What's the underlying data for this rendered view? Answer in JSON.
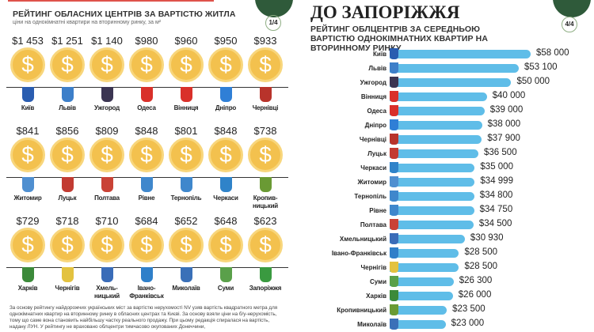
{
  "left": {
    "heading": "РЕЙТИНГ ОБЛАСНИХ ЦЕНТРІВ ЗА ВАРТІСТЮ ЖИТЛА",
    "subheading": "ціни на однокімнатні квартири на вторинному ринку, за м²",
    "page": "1/4",
    "coin_symbol": "$",
    "cities": [
      {
        "name": "Київ",
        "price": "$1 453",
        "flag": "#2a5db0"
      },
      {
        "name": "Львів",
        "price": "$1 251",
        "flag": "#3d7fc9"
      },
      {
        "name": "Ужгород",
        "price": "$1 140",
        "flag": "#3b3552"
      },
      {
        "name": "Одеса",
        "price": "$980",
        "flag": "#d9302a"
      },
      {
        "name": "Вінниця",
        "price": "$960",
        "flag": "#d9302a"
      },
      {
        "name": "Дніпро",
        "price": "$950",
        "flag": "#2f7fd6"
      },
      {
        "name": "Чернівці",
        "price": "$933",
        "flag": "#b8332b"
      },
      {
        "name": "Житомир",
        "price": "$841",
        "flag": "#4f8fd0"
      },
      {
        "name": "Луцьк",
        "price": "$856",
        "flag": "#c23b32"
      },
      {
        "name": "Полтава",
        "price": "$809",
        "flag": "#c94236"
      },
      {
        "name": "Рівне",
        "price": "$848",
        "flag": "#3f87cc"
      },
      {
        "name": "Тернопіль",
        "price": "$801",
        "flag": "#3f87cc"
      },
      {
        "name": "Черкаси",
        "price": "$848",
        "flag": "#2f83c9"
      },
      {
        "name": "Кропив-ницький",
        "price": "$738",
        "flag": "#6a9a34"
      },
      {
        "name": "Харків",
        "price": "$729",
        "flag": "#3c8a3a"
      },
      {
        "name": "Чернігів",
        "price": "$718",
        "flag": "#e3c23f"
      },
      {
        "name": "Хмель-ницький",
        "price": "$710",
        "flag": "#3a6cb8"
      },
      {
        "name": "Івано-Франківськ",
        "price": "$684",
        "flag": "#2f7fc9"
      },
      {
        "name": "Миколаїв",
        "price": "$652",
        "flag": "#3a70b8"
      },
      {
        "name": "Суми",
        "price": "$648",
        "flag": "#5aa04a"
      },
      {
        "name": "Запоріжжя",
        "price": "$623",
        "flag": "#3a9a40"
      }
    ],
    "footnote": "За основу рейтингу найдорожчих українських міст за вартістю нерухомості NV узяв вартість квадратного метра для однокімнатних квартир на вторинному ринку в обласних центрах та Києві. За основу взяли ціни на б/у-нерухомість, тому що саме вона становить найбільшу частку реального продажу. При цьому редакція спиралася на вартість, надану ЛУН. У рейтингу не враховано облцентри тимчасово окупованих Донеччини,"
  },
  "right": {
    "title": "ДО ЗАПОРІЖЖЯ",
    "page": "4/4",
    "chart_data": {
      "type": "bar",
      "orientation": "horizontal",
      "title": "РЕЙТИНГ ОБЛЦЕНТРІВ ЗА СЕРЕДНЬОЮ ВАРТІСТЮ ОДНОКІМНАТНИХ КВАРТИР НА ВТОРИННОМУ РИНКУ",
      "color": "#5fbde8",
      "categories": [
        "Київ",
        "Львів",
        "Ужгород",
        "Вінниця",
        "Одеса",
        "Дніпро",
        "Чернівці",
        "Луцьк",
        "Черкаси",
        "Житомир",
        "Тернопіль",
        "Рівне",
        "Полтава",
        "Хмельницький",
        "Івано-Франківськ",
        "Чернігів",
        "Суми",
        "Харків",
        "Кропивницький",
        "Миколаїв"
      ],
      "values": [
        58000,
        53100,
        50000,
        40000,
        39000,
        38000,
        37900,
        36500,
        35000,
        34999,
        34800,
        34750,
        34500,
        30930,
        28500,
        28500,
        26300,
        26000,
        23500,
        23000
      ],
      "labels": [
        "$58 000",
        "$53 100",
        "$50 000",
        "$40 000",
        "$39 000",
        "$38 000",
        "$37 900",
        "$36 500",
        "$35 000",
        "$34 999",
        "$34 800",
        "$34 750",
        "$34 500",
        "$30 930",
        "$28 500",
        "$28 500",
        "$26 300",
        "$26 000",
        "$23 500",
        "$23 000"
      ],
      "flags": [
        "#2a5db0",
        "#3d7fc9",
        "#3b3552",
        "#d9302a",
        "#d9302a",
        "#2f7fd6",
        "#b8332b",
        "#c23b32",
        "#2f83c9",
        "#4f8fd0",
        "#3f87cc",
        "#3f87cc",
        "#c94236",
        "#3a6cb8",
        "#2f7fc9",
        "#e3c23f",
        "#5aa04a",
        "#3c8a3a",
        "#6a9a34",
        "#3a70b8"
      ]
    }
  }
}
